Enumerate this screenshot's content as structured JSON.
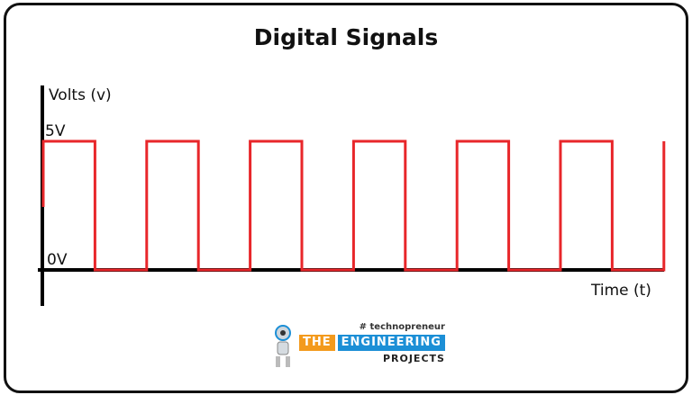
{
  "title": "Digital Signals",
  "y_axis_label": "Volts (v)",
  "x_axis_label": "Time (t)",
  "high_label": "5V",
  "low_label": "0V",
  "signal": {
    "color": "#e8262a",
    "levels_volts": [
      5,
      0,
      5,
      0,
      5,
      0,
      5,
      0,
      5,
      0,
      5,
      0,
      5
    ],
    "high": 5,
    "low": 0
  },
  "logo": {
    "tagline": "# technopreneur",
    "word1": "THE",
    "word2": "ENGINEERING",
    "word3": "PROJECTS"
  }
}
